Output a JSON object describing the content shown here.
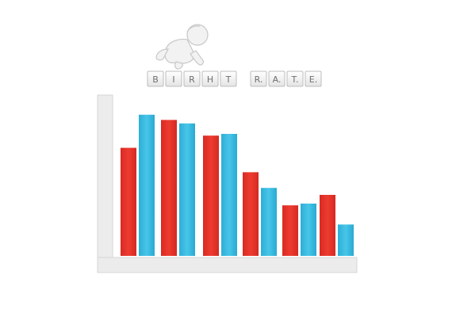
{
  "header": {
    "icon": "crawling-baby-icon",
    "title_word_1_letters": [
      "B",
      "I",
      "R",
      "H",
      "T"
    ],
    "title_word_2_letters": [
      "R",
      "A",
      "T",
      "E"
    ],
    "title_word_2_periods": true
  },
  "chart_data": {
    "type": "bar",
    "title": "BIRHT R.A.T.E.",
    "categories": [
      "",
      "",
      "",
      "",
      "",
      ""
    ],
    "xlabel": "",
    "ylabel": "",
    "ylim": [
      0,
      100
    ],
    "grid": false,
    "series": [
      {
        "color": "#e8352b",
        "values": [
          62,
          78,
          69,
          48,
          29,
          35
        ]
      },
      {
        "color": "#3bbde0",
        "values": [
          81,
          76,
          70,
          39,
          30,
          18
        ]
      }
    ]
  }
}
